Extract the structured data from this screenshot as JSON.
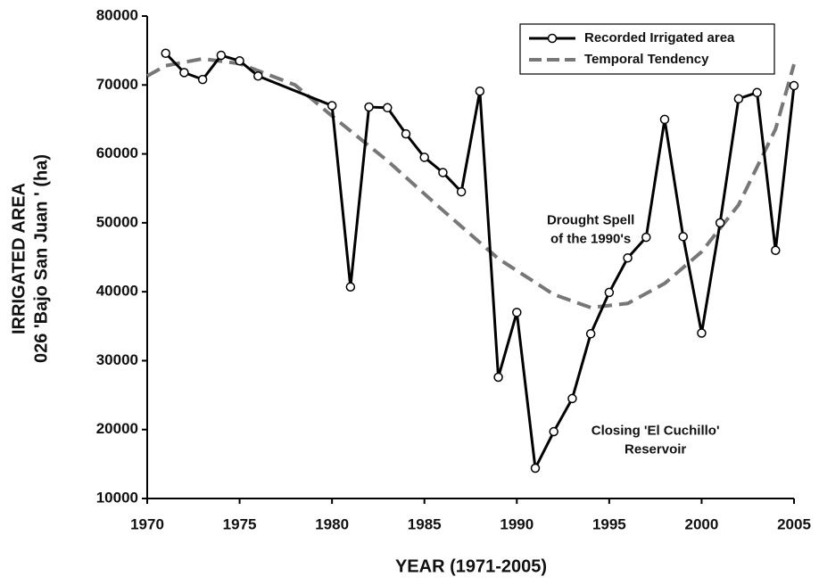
{
  "chart_data": {
    "type": "line",
    "x_label": "YEAR (1971-2005)",
    "y_label": [
      "IRRIGATED AREA",
      "026 'Bajo San Juan ' (ha)"
    ],
    "xlim": [
      1970,
      2005
    ],
    "xticks": [
      1970,
      1975,
      1980,
      1985,
      1990,
      1995,
      2000,
      2005
    ],
    "ylim": [
      10000,
      80000
    ],
    "yticks": [
      10000,
      20000,
      30000,
      40000,
      50000,
      60000,
      70000,
      80000
    ],
    "legend": "top-right",
    "series": [
      {
        "name": "Recorded Irrigated area",
        "color": "#000000",
        "style": "solid",
        "markers": true,
        "x": [
          1971,
          1972,
          1973,
          1974,
          1975,
          1976,
          1980,
          1981,
          1982,
          1983,
          1984,
          1985,
          1986,
          1987,
          1988,
          1989,
          1990,
          1991,
          1992,
          1993,
          1994,
          1995,
          1996,
          1997,
          1998,
          1999,
          2000,
          2001,
          2002,
          2003,
          2004,
          2005
        ],
        "values": [
          74600,
          71800,
          70800,
          74300,
          73500,
          71300,
          67000,
          40700,
          66800,
          66700,
          62900,
          59500,
          57300,
          54500,
          69100,
          27600,
          37000,
          14400,
          19700,
          24500,
          33900,
          39900,
          44900,
          47900,
          65000,
          48000,
          34000,
          50000,
          68000,
          68900,
          46000,
          69900
        ]
      },
      {
        "name": "Temporal Tendency",
        "color": "#777777",
        "style": "dashed",
        "markers": false,
        "x": [
          1970,
          1971,
          1973,
          1975,
          1978,
          1980,
          1983,
          1986,
          1989,
          1992,
          1994,
          1996,
          1998,
          2000,
          2002,
          2004,
          2005
        ],
        "values": [
          71300,
          72800,
          73800,
          73100,
          70000,
          65500,
          59000,
          51800,
          44800,
          39600,
          37700,
          38300,
          41200,
          45800,
          52600,
          63600,
          73000
        ]
      }
    ],
    "annotations": [
      {
        "text": [
          "Drought Spell",
          "of the 1990's"
        ],
        "x": 1994,
        "y": 49000
      },
      {
        "text": [
          "Closing 'El Cuchillo'",
          "Reservoir"
        ],
        "x": 1997.5,
        "y": 18500
      }
    ]
  }
}
